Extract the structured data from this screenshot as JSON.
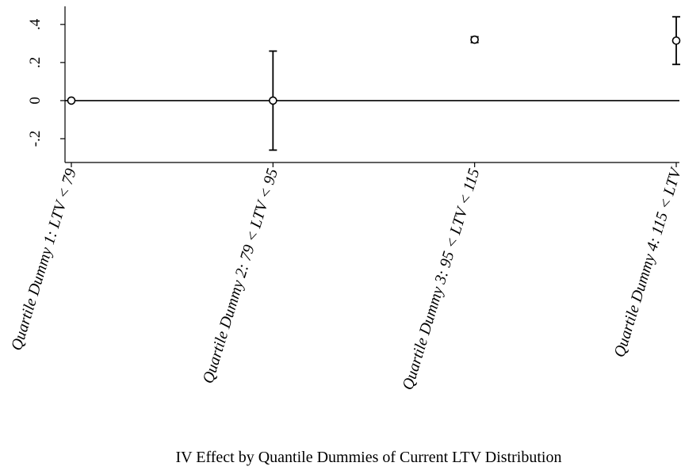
{
  "chart_data": {
    "type": "errorbar",
    "title": "IV Effect by Quantile Dummies of Current LTV Distribution",
    "categories": [
      "Quartile Dummy 1: LTV < 79",
      "Quartile Dummy 2: 79 < LTV < 95",
      "Quartile Dummy 3: 95 < LTV < 115",
      "Quartile Dummy 4: 115 < LTV"
    ],
    "values": [
      0,
      0,
      0.32,
      0.315
    ],
    "errors": [
      0,
      0.26,
      0.015,
      0.125
    ],
    "ylim": [
      -0.325,
      0.495
    ],
    "yticks": [
      {
        "value": -0.2,
        "label": "-.2"
      },
      0,
      {
        "value": 0.2,
        "label": ".2"
      },
      {
        "value": 0.4,
        "label": ".4"
      }
    ],
    "hline": 0,
    "color": "#000000"
  }
}
